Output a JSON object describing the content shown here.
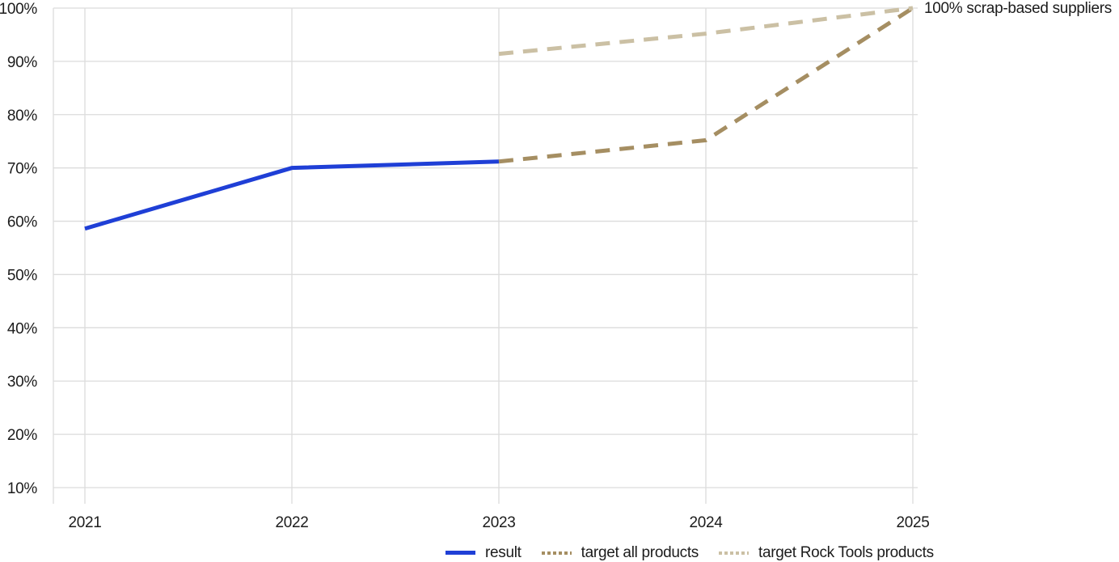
{
  "chart_data": {
    "type": "line",
    "categories": [
      "2021",
      "2022",
      "2023",
      "2024",
      "2025"
    ],
    "yticks": [
      "100%",
      "90%",
      "80%",
      "70%",
      "60%",
      "50%",
      "40%",
      "30%",
      "20%",
      "10%"
    ],
    "ylim": [
      10,
      100
    ],
    "grid": true,
    "legend_position": "bottom",
    "series": [
      {
        "name": "result",
        "color": "#1f3fd6",
        "dash": "solid",
        "x": [
          "2021",
          "2022",
          "2023"
        ],
        "values": [
          58.6,
          70,
          71.2
        ]
      },
      {
        "name": "target all products",
        "color": "#a58e62",
        "dash": "dashed",
        "x": [
          "2023",
          "2024",
          "2025"
        ],
        "values": [
          71.2,
          75.2,
          100
        ]
      },
      {
        "name": "target Rock Tools products",
        "color": "#cbc0a4",
        "dash": "dashed",
        "x": [
          "2023",
          "2024",
          "2025"
        ],
        "values": [
          91.4,
          95.2,
          100
        ]
      }
    ],
    "annotation": "100% scrap-based suppliers"
  },
  "colors": {
    "grid": "#dcdcdc",
    "text": "#1c1c1c",
    "background": "#ffffff",
    "result_blue": "#1f3fd6",
    "target_all_tan": "#a58e62",
    "target_rock_tools_tan": "#cbc0a4"
  }
}
